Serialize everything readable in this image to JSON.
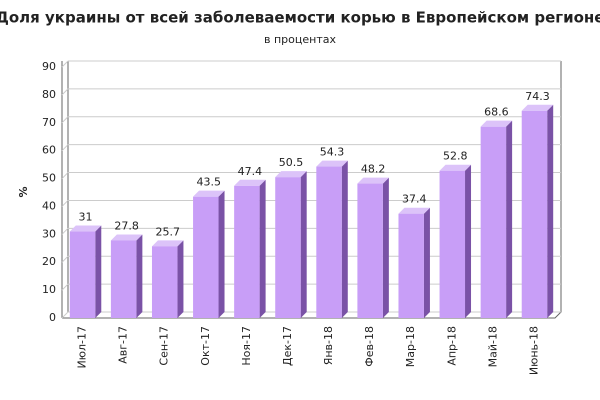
{
  "chart_data": {
    "type": "bar",
    "title": "Доля украины от всей заболеваемости корью в Европейском регионе",
    "subtitle": "в процентах",
    "y_label": "%",
    "categories": [
      "Июл-17",
      "Авг-17",
      "Сен-17",
      "Окт-17",
      "Ноя-17",
      "Дек-17",
      "Янв-18",
      "Фев-18",
      "Мар-18",
      "Апр-18",
      "Май-18",
      "Июнь-18"
    ],
    "values": [
      31,
      27.8,
      25.7,
      43.5,
      47.4,
      50.5,
      54.3,
      48.2,
      37.4,
      52.8,
      68.6,
      74.3
    ],
    "color": "#c89ef7",
    "ylim": [
      0,
      90
    ],
    "yticks": [
      0,
      10,
      20,
      30,
      40,
      50,
      60,
      70,
      80,
      90
    ],
    "grid": true
  }
}
